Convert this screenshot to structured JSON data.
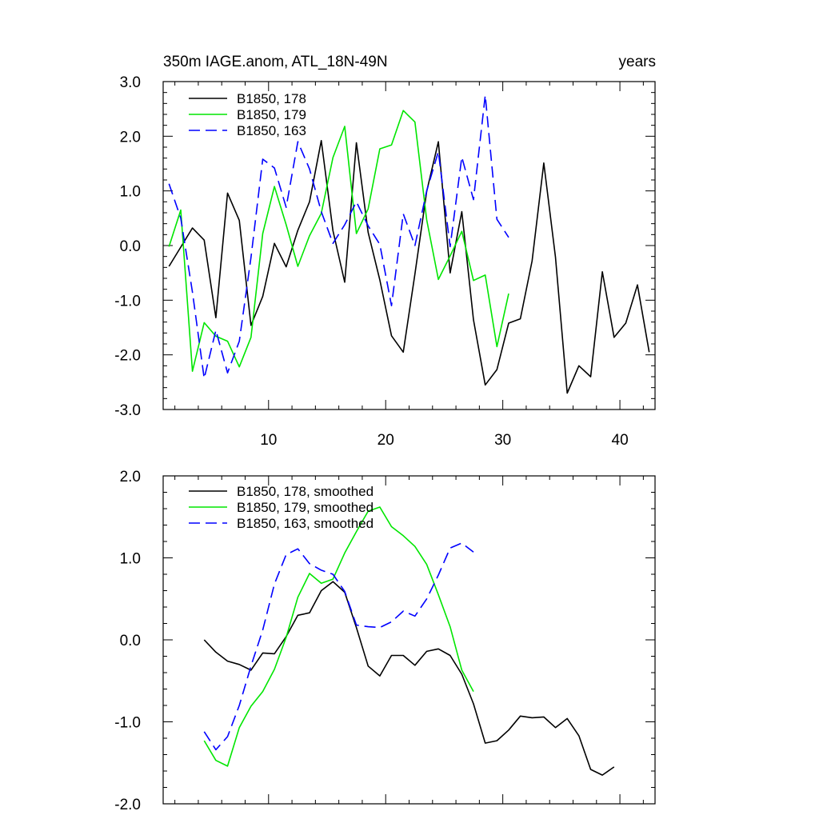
{
  "chart_data": [
    {
      "type": "line",
      "title": "350m IAGE.anom, ATL_18N-49N",
      "units_label": "years",
      "xlim": [
        1,
        43
      ],
      "ylim": [
        -3,
        3
      ],
      "x_ticks": [
        10,
        20,
        30,
        40
      ],
      "x_tick_labels": [
        "10",
        "20",
        "30",
        "40"
      ],
      "y_ticks": [
        -3,
        -2,
        -1,
        0,
        1,
        2,
        3
      ],
      "y_tick_labels": [
        "-3.0",
        "-2.0",
        "-1.0",
        "0.0",
        "1.0",
        "2.0",
        "3.0"
      ],
      "legend_location": "top-left",
      "series": [
        {
          "name": "B1850, 178",
          "color": "#000000",
          "dash": "solid",
          "x": [
            1.5,
            2.5,
            3.5,
            4.5,
            5.5,
            6.5,
            7.5,
            8.5,
            9.5,
            10.5,
            11.5,
            12.5,
            13.5,
            14.5,
            15.5,
            16.5,
            17.5,
            18.5,
            19.5,
            20.5,
            21.5,
            22.5,
            23.5,
            24.5,
            25.5,
            26.5,
            27.5,
            28.5,
            29.5,
            30.5,
            31.5,
            32.5,
            33.5,
            34.5,
            35.5,
            36.5,
            37.5,
            38.5,
            39.5,
            40.5,
            41.5,
            42.5
          ],
          "values": [
            -0.38,
            -0.03,
            0.32,
            0.1,
            -1.32,
            0.96,
            0.46,
            -1.46,
            -0.93,
            0.04,
            -0.39,
            0.28,
            0.8,
            1.92,
            0.27,
            -0.67,
            1.88,
            0.24,
            -0.63,
            -1.65,
            -1.95,
            -0.52,
            0.99,
            1.9,
            -0.5,
            0.62,
            -1.36,
            -2.55,
            -2.27,
            -1.42,
            -1.34,
            -0.28,
            1.51,
            -0.21,
            -2.7,
            -2.2,
            -2.4,
            -0.48,
            -1.68,
            -1.42,
            -0.72,
            -1.95
          ]
        },
        {
          "name": "B1850, 179",
          "color": "#00e600",
          "dash": "solid",
          "x": [
            1.5,
            2.5,
            3.5,
            4.5,
            5.5,
            6.5,
            7.5,
            8.5,
            9.5,
            10.5,
            11.5,
            12.5,
            13.5,
            14.5,
            15.5,
            16.5,
            17.5,
            18.5,
            19.5,
            20.5,
            21.5,
            22.5,
            23.5,
            24.5,
            25.5,
            26.5,
            27.5,
            28.5,
            29.5,
            30.5
          ],
          "values": [
            -0.02,
            0.65,
            -2.3,
            -1.41,
            -1.66,
            -1.75,
            -2.22,
            -1.68,
            0.22,
            1.08,
            0.38,
            -0.38,
            0.18,
            0.59,
            1.61,
            2.18,
            0.22,
            0.67,
            1.77,
            1.84,
            2.47,
            2.26,
            0.47,
            -0.62,
            -0.19,
            0.26,
            -0.64,
            -0.54,
            -1.85,
            -0.88
          ]
        },
        {
          "name": "B1850, 163",
          "color": "#0000ff",
          "dash": "dashed",
          "x": [
            1.5,
            2.5,
            3.5,
            4.5,
            5.5,
            6.5,
            7.5,
            8.5,
            9.5,
            10.5,
            11.5,
            12.5,
            13.5,
            14.5,
            15.5,
            16.5,
            17.5,
            18.5,
            19.5,
            20.5,
            21.5,
            22.5,
            23.5,
            24.5,
            25.5,
            26.5,
            27.5,
            28.5,
            29.5,
            30.5
          ],
          "values": [
            1.13,
            0.5,
            -0.85,
            -2.43,
            -1.55,
            -2.33,
            -1.75,
            -0.22,
            1.58,
            1.42,
            0.7,
            1.9,
            1.4,
            0.62,
            0.04,
            0.38,
            0.8,
            0.36,
            0.02,
            -1.1,
            0.58,
            0.0,
            1.0,
            1.72,
            -0.02,
            1.62,
            0.84,
            2.75,
            0.48,
            0.15
          ]
        }
      ]
    },
    {
      "type": "line",
      "xlim": [
        1,
        43
      ],
      "ylim": [
        -2,
        2
      ],
      "x_ticks": [
        10,
        20,
        30,
        40
      ],
      "y_ticks": [
        -2,
        -1,
        0,
        1,
        2
      ],
      "y_tick_labels": [
        "-2.0",
        "-1.0",
        "0.0",
        "1.0",
        "2.0"
      ],
      "legend_location": "top-left",
      "series": [
        {
          "name": "B1850, 178, smoothed",
          "color": "#000000",
          "dash": "solid",
          "x": [
            4.5,
            5.5,
            6.5,
            7.5,
            8.5,
            9.5,
            10.5,
            11.5,
            12.5,
            13.5,
            14.5,
            15.5,
            16.5,
            17.5,
            18.5,
            19.5,
            20.5,
            21.5,
            22.5,
            23.5,
            24.5,
            25.5,
            26.5,
            27.5,
            28.5,
            29.5,
            30.5,
            31.5,
            32.5,
            33.5,
            34.5,
            35.5,
            36.5,
            37.5,
            38.5,
            39.5
          ],
          "values": [
            0.0,
            -0.15,
            -0.26,
            -0.3,
            -0.37,
            -0.16,
            -0.17,
            0.04,
            0.3,
            0.33,
            0.6,
            0.71,
            0.58,
            0.15,
            -0.32,
            -0.44,
            -0.19,
            -0.19,
            -0.31,
            -0.14,
            -0.11,
            -0.19,
            -0.42,
            -0.78,
            -1.26,
            -1.23,
            -1.1,
            -0.93,
            -0.95,
            -0.94,
            -1.07,
            -0.96,
            -1.17,
            -1.58,
            -1.65,
            -1.55
          ]
        },
        {
          "name": "B1850, 179, smoothed",
          "color": "#00e600",
          "dash": "solid",
          "x": [
            4.5,
            5.5,
            6.5,
            7.5,
            8.5,
            9.5,
            10.5,
            11.5,
            12.5,
            13.5,
            14.5,
            15.5,
            16.5,
            17.5,
            18.5,
            19.5,
            20.5,
            21.5,
            22.5,
            23.5,
            24.5,
            25.5,
            26.5,
            27.5
          ],
          "values": [
            -1.23,
            -1.47,
            -1.54,
            -1.07,
            -0.81,
            -0.63,
            -0.36,
            0.03,
            0.52,
            0.81,
            0.69,
            0.74,
            1.06,
            1.32,
            1.57,
            1.62,
            1.38,
            1.27,
            1.14,
            0.92,
            0.55,
            0.16,
            -0.37,
            -0.63
          ]
        },
        {
          "name": "B1850, 163, smoothed",
          "color": "#0000ff",
          "dash": "dashed",
          "x": [
            4.5,
            5.5,
            6.5,
            7.5,
            8.5,
            9.5,
            10.5,
            11.5,
            12.5,
            13.5,
            14.5,
            15.5,
            16.5,
            17.5,
            18.5,
            19.5,
            20.5,
            21.5,
            22.5,
            23.5,
            24.5,
            25.5,
            26.5,
            27.5
          ],
          "values": [
            -1.12,
            -1.34,
            -1.18,
            -0.8,
            -0.32,
            0.12,
            0.68,
            1.04,
            1.11,
            0.93,
            0.85,
            0.8,
            0.59,
            0.18,
            0.16,
            0.15,
            0.22,
            0.35,
            0.29,
            0.5,
            0.79,
            1.12,
            1.18,
            1.07
          ]
        }
      ]
    }
  ]
}
